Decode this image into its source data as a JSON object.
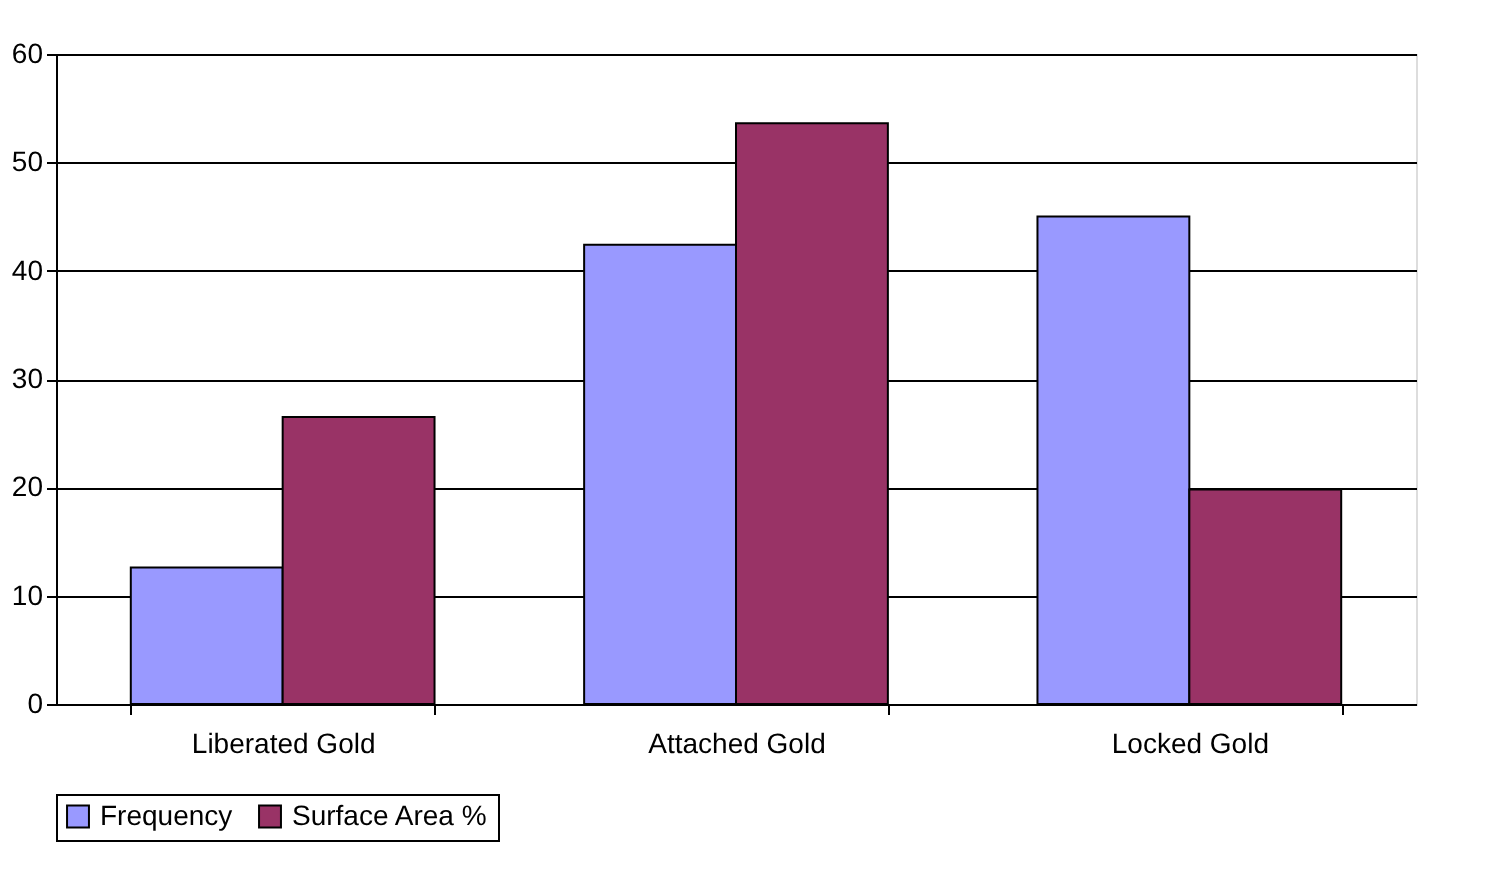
{
  "chart_data": {
    "type": "bar",
    "categories": [
      "Liberated Gold",
      "Attached Gold",
      "Locked Gold"
    ],
    "series": [
      {
        "name": "Frequency",
        "color": "#9999ff",
        "values": [
          12.6,
          42.4,
          45.0
        ]
      },
      {
        "name": "Surface Area %",
        "color": "#993366",
        "values": [
          26.5,
          53.6,
          19.8
        ]
      }
    ],
    "ylim": [
      0,
      60
    ],
    "yticks": [
      0,
      10,
      20,
      30,
      40,
      50,
      60
    ],
    "grid": "y",
    "legend": "bottom"
  }
}
